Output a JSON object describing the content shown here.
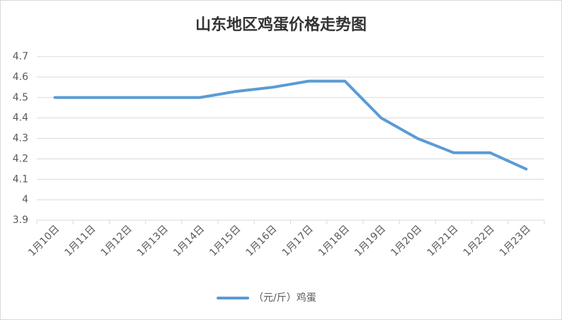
{
  "chart_data": {
    "type": "line",
    "title": "山东地区鸡蛋价格走势图",
    "categories": [
      "1月10日",
      "1月11日",
      "1月12日",
      "1月13日",
      "1月14日",
      "1月15日",
      "1月16日",
      "1月17日",
      "1月18日",
      "1月19日",
      "1月20日",
      "1月21日",
      "1月22日",
      "1月23日"
    ],
    "series": [
      {
        "name": "（元/斤）鸡蛋",
        "color": "#5b9bd5",
        "values": [
          4.5,
          4.5,
          4.5,
          4.5,
          4.5,
          4.53,
          4.55,
          4.58,
          4.58,
          4.4,
          4.3,
          4.23,
          4.23,
          4.15
        ]
      }
    ],
    "ylim": [
      3.9,
      4.7
    ],
    "yticks": [
      3.9,
      4,
      4.1,
      4.2,
      4.3,
      4.4,
      4.5,
      4.6,
      4.7
    ],
    "grid": true,
    "legend": "bottom"
  }
}
